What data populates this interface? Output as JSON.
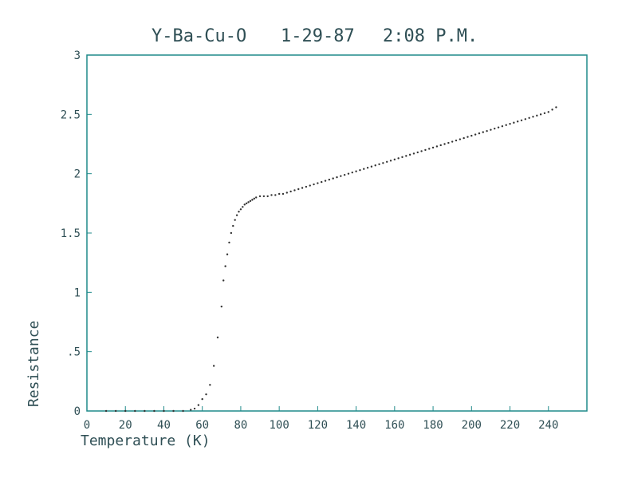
{
  "chart_data": {
    "type": "scatter",
    "title": "Y-Ba-Cu-O 1-29-87 2:08 P.M.",
    "title_parts": [
      "Y-Ba-Cu-O",
      "1-29-87",
      "2:08 P.M."
    ],
    "xlabel": "Temperature (K)",
    "ylabel": "Resistance",
    "xlim": [
      0,
      260
    ],
    "ylim": [
      0,
      3
    ],
    "x_ticks": [
      0,
      20,
      40,
      60,
      80,
      100,
      120,
      140,
      160,
      180,
      200,
      220,
      240
    ],
    "x_tick_labels": [
      "0",
      "20",
      "40",
      "60",
      "80",
      "100",
      "120",
      "140",
      "160",
      "180",
      "200",
      "220",
      "240"
    ],
    "y_ticks": [
      0,
      0.5,
      1,
      1.5,
      2,
      2.5,
      3
    ],
    "y_tick_labels": [
      "0",
      ".5",
      "1",
      "1.5",
      "2",
      "2.5",
      "3"
    ],
    "grid": false,
    "colors": {
      "axes": "#1f8a8a",
      "text": "#2f4f55",
      "points": "#333333"
    },
    "series": [
      {
        "x": [
          10,
          15,
          20,
          25,
          30,
          35,
          40,
          45,
          50,
          54,
          56,
          58,
          60,
          62,
          64,
          66,
          68,
          70,
          71,
          72,
          73,
          74,
          75,
          76,
          77,
          78,
          79,
          80,
          81,
          82,
          83,
          84,
          85,
          86,
          87,
          88,
          90,
          92,
          94,
          96,
          98,
          100,
          102,
          104,
          106,
          108,
          110,
          112,
          114,
          116,
          118,
          120,
          122,
          124,
          126,
          128,
          130,
          132,
          134,
          136,
          138,
          140,
          142,
          144,
          146,
          148,
          150,
          152,
          154,
          156,
          158,
          160,
          162,
          164,
          166,
          168,
          170,
          172,
          174,
          176,
          178,
          180,
          182,
          184,
          186,
          188,
          190,
          192,
          194,
          196,
          198,
          200,
          202,
          204,
          206,
          208,
          210,
          212,
          214,
          216,
          218,
          220,
          222,
          224,
          226,
          228,
          230,
          232,
          234,
          236,
          238,
          240,
          242,
          244
        ],
        "y": [
          0,
          0,
          0,
          0,
          0,
          0,
          0,
          0,
          0,
          0.01,
          0.02,
          0.05,
          0.1,
          0.14,
          0.22,
          0.38,
          0.62,
          0.88,
          1.1,
          1.22,
          1.32,
          1.42,
          1.5,
          1.56,
          1.61,
          1.65,
          1.68,
          1.7,
          1.72,
          1.74,
          1.75,
          1.76,
          1.77,
          1.78,
          1.79,
          1.8,
          1.81,
          1.81,
          1.81,
          1.82,
          1.82,
          1.83,
          1.83,
          1.84,
          1.85,
          1.86,
          1.87,
          1.88,
          1.89,
          1.9,
          1.91,
          1.92,
          1.93,
          1.94,
          1.95,
          1.96,
          1.97,
          1.98,
          1.99,
          2.0,
          2.01,
          2.02,
          2.03,
          2.04,
          2.05,
          2.06,
          2.07,
          2.08,
          2.09,
          2.1,
          2.11,
          2.12,
          2.13,
          2.14,
          2.15,
          2.16,
          2.17,
          2.18,
          2.19,
          2.2,
          2.21,
          2.22,
          2.23,
          2.24,
          2.25,
          2.26,
          2.27,
          2.28,
          2.29,
          2.3,
          2.31,
          2.32,
          2.33,
          2.34,
          2.35,
          2.36,
          2.37,
          2.38,
          2.39,
          2.4,
          2.41,
          2.42,
          2.43,
          2.44,
          2.45,
          2.46,
          2.47,
          2.48,
          2.49,
          2.5,
          2.51,
          2.52,
          2.54,
          2.56
        ]
      }
    ]
  }
}
